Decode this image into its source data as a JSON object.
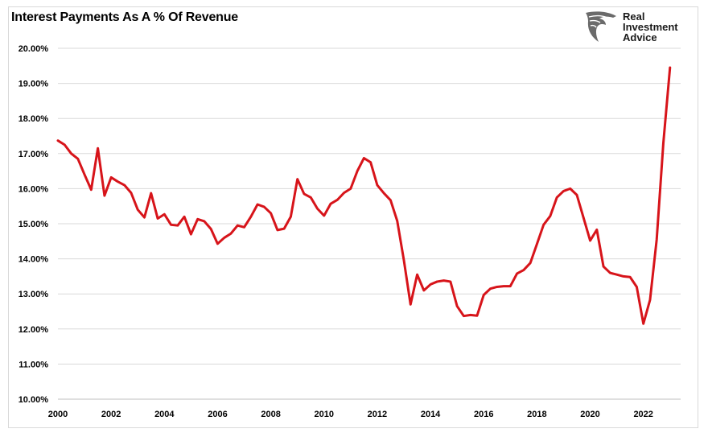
{
  "logo": {
    "line1": "Real",
    "line2": "Investment",
    "line3": "Advice"
  },
  "chart_data": {
    "type": "line",
    "title": "Interest Payments As A % Of Revenue",
    "xlabel": "",
    "ylabel": "",
    "xlim": [
      2000.0,
      2023.4
    ],
    "ylim": [
      10.0,
      20.0
    ],
    "x_ticks": [
      "2000",
      "2002",
      "2004",
      "2006",
      "2008",
      "2010",
      "2012",
      "2014",
      "2016",
      "2018",
      "2020",
      "2022"
    ],
    "y_ticks": [
      "10.00%",
      "11.00%",
      "12.00%",
      "13.00%",
      "14.00%",
      "15.00%",
      "16.00%",
      "17.00%",
      "18.00%",
      "19.00%",
      "20.00%"
    ],
    "grid": true,
    "legend": "none",
    "color": "#d7141a",
    "series": [
      {
        "x": [
          2000.0,
          2000.25,
          2000.5,
          2000.75,
          2001.0,
          2001.25,
          2001.5,
          2001.75,
          2002.0,
          2002.25,
          2002.5,
          2002.75,
          2003.0,
          2003.25,
          2003.5,
          2003.75,
          2004.0,
          2004.25,
          2004.5,
          2004.75,
          2005.0,
          2005.25,
          2005.5,
          2005.75,
          2006.0,
          2006.25,
          2006.5,
          2006.75,
          2007.0,
          2007.25,
          2007.5,
          2007.75,
          2008.0,
          2008.25,
          2008.5,
          2008.75,
          2009.0,
          2009.25,
          2009.5,
          2009.75,
          2010.0,
          2010.25,
          2010.5,
          2010.75,
          2011.0,
          2011.25,
          2011.5,
          2011.75,
          2012.0,
          2012.25,
          2012.5,
          2012.75,
          2013.0,
          2013.25,
          2013.5,
          2013.75,
          2014.0,
          2014.25,
          2014.5,
          2014.75,
          2015.0,
          2015.25,
          2015.5,
          2015.75,
          2016.0,
          2016.25,
          2016.5,
          2016.75,
          2017.0,
          2017.25,
          2017.5,
          2017.75,
          2018.0,
          2018.25,
          2018.5,
          2018.75,
          2019.0,
          2019.25,
          2019.5,
          2019.75,
          2020.0,
          2020.25,
          2020.5,
          2020.75,
          2021.0,
          2021.25,
          2021.5,
          2021.75,
          2022.0,
          2022.25,
          2022.5,
          2022.75,
          2023.0
        ],
        "y": [
          17.37,
          17.25,
          17.0,
          16.85,
          16.4,
          15.97,
          17.15,
          15.8,
          16.32,
          16.2,
          16.1,
          15.88,
          15.4,
          15.18,
          15.87,
          15.15,
          15.27,
          14.97,
          14.95,
          15.2,
          14.7,
          15.13,
          15.07,
          14.85,
          14.43,
          14.6,
          14.72,
          14.95,
          14.9,
          15.2,
          15.55,
          15.48,
          15.3,
          14.82,
          14.86,
          15.2,
          16.27,
          15.85,
          15.75,
          15.43,
          15.23,
          15.57,
          15.68,
          15.88,
          16.0,
          16.5,
          16.87,
          16.75,
          16.1,
          15.87,
          15.67,
          15.08,
          13.96,
          12.7,
          13.55,
          13.1,
          13.27,
          13.35,
          13.38,
          13.35,
          12.65,
          12.37,
          12.4,
          12.38,
          12.97,
          13.15,
          13.2,
          13.22,
          13.22,
          13.58,
          13.68,
          13.88,
          14.42,
          14.97,
          15.22,
          15.75,
          15.93,
          16.0,
          15.82,
          15.17,
          14.52,
          14.83,
          13.78,
          13.6,
          13.55,
          13.5,
          13.48,
          13.2,
          12.15,
          12.83,
          14.55,
          17.3,
          19.45
        ]
      }
    ]
  }
}
